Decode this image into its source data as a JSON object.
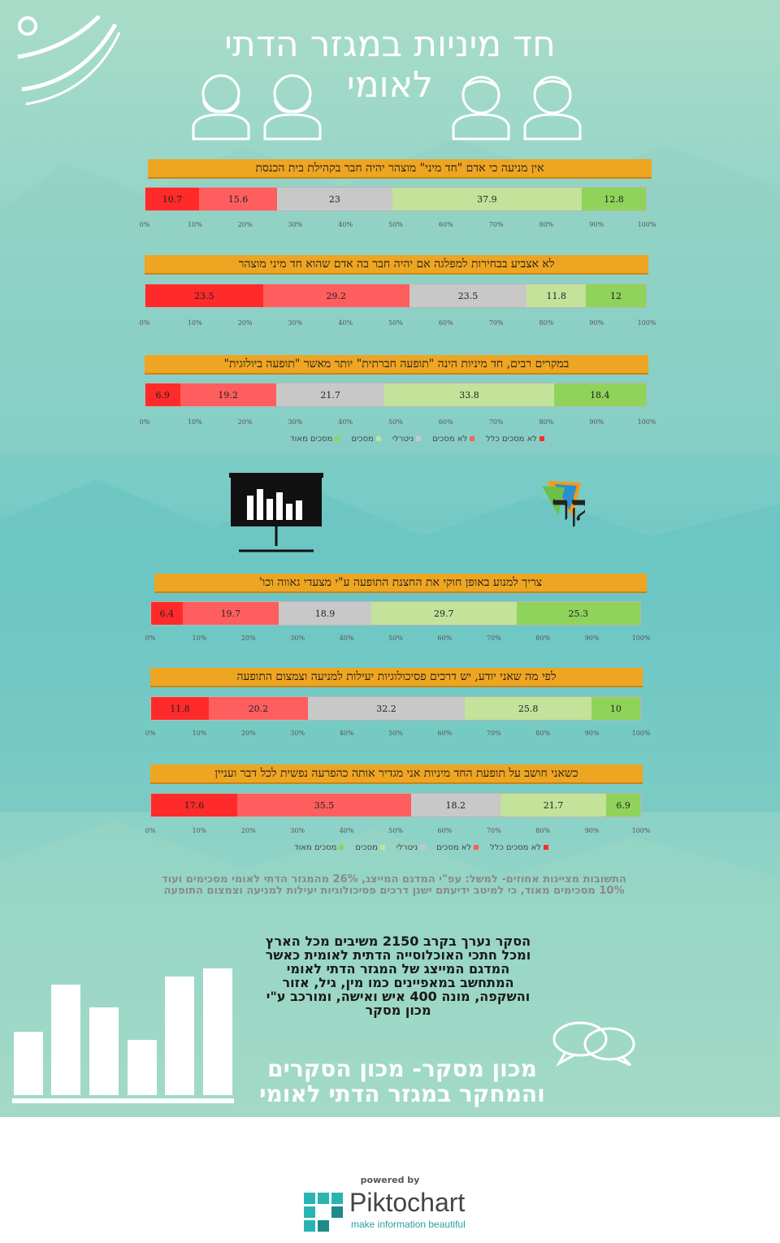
{
  "header": {
    "title_line1": "חד מיניות במגזר הדתי",
    "title_line2": "לאומי"
  },
  "colors": {
    "bg_top": "#a9dcc8",
    "bg_mid": "#72c9c6",
    "header_bar": "#eea522",
    "strongly_disagree": "#ff2b2b",
    "disagree": "#ff5e5e",
    "neutral": "#c8c8c8",
    "agree": "#c3e29a",
    "strongly_agree": "#8fd35a"
  },
  "axis_ticks": [
    "0%",
    "10%",
    "20%",
    "30%",
    "40%",
    "50%",
    "60%",
    "70%",
    "80%",
    "90%",
    "100%"
  ],
  "legend": {
    "strongly_disagree": "לא מסכים כלל",
    "disagree": "לא מסכים",
    "neutral": "ניטרלי",
    "agree": "מסכים",
    "strongly_agree": "מסכים מאוד"
  },
  "logo": {
    "text": "מסקר"
  },
  "chart_data": [
    {
      "type": "bar",
      "stacked": true,
      "orientation": "horizontal",
      "title": "אין מניעה כי אדם \"חד מיני\" מוצהר יהיה חבר בקהילת בית הכנסת",
      "xlim": [
        0,
        100
      ],
      "categories": [
        "לא מסכים כלל",
        "לא מסכים",
        "ניטרלי",
        "מסכים",
        "מסכים מאוד"
      ],
      "values": [
        10.7,
        15.6,
        23,
        37.9,
        12.8
      ]
    },
    {
      "type": "bar",
      "stacked": true,
      "orientation": "horizontal",
      "title": "לא אצביע בבחירות למפלגה אם יהיה חבר בה אדם שהוא חד מיני מוצהר",
      "xlim": [
        0,
        100
      ],
      "categories": [
        "לא מסכים כלל",
        "לא מסכים",
        "ניטרלי",
        "מסכים",
        "מסכים מאוד"
      ],
      "values": [
        23.5,
        29.2,
        23.5,
        11.8,
        12
      ]
    },
    {
      "type": "bar",
      "stacked": true,
      "orientation": "horizontal",
      "title": "במקרים רבים, חד מיניות הינה \"תופעה חברתית\" יותר מאשר \"תופעה ביולוגית\"",
      "xlim": [
        0,
        100
      ],
      "categories": [
        "לא מסכים כלל",
        "לא מסכים",
        "ניטרלי",
        "מסכים",
        "מסכים מאוד"
      ],
      "values": [
        6.9,
        19.2,
        21.7,
        33.8,
        18.4
      ]
    },
    {
      "type": "bar",
      "stacked": true,
      "orientation": "horizontal",
      "title": "צריך למנוע באופן חוקי את החצנת התופעה ע\"י מצעדי גאווה וכו'",
      "xlim": [
        0,
        100
      ],
      "categories": [
        "לא מסכים כלל",
        "לא מסכים",
        "ניטרלי",
        "מסכים",
        "מסכים מאוד"
      ],
      "values": [
        6.4,
        19.7,
        18.9,
        29.7,
        25.3
      ]
    },
    {
      "type": "bar",
      "stacked": true,
      "orientation": "horizontal",
      "title": "לפי מה שאני יודע, יש דרכים פסיכולוגיות יעילות למניעה וצמצום התופעה",
      "xlim": [
        0,
        100
      ],
      "categories": [
        "לא מסכים כלל",
        "לא מסכים",
        "ניטרלי",
        "מסכים",
        "מסכים מאוד"
      ],
      "values": [
        11.8,
        20.2,
        32.2,
        25.8,
        10
      ]
    },
    {
      "type": "bar",
      "stacked": true,
      "orientation": "horizontal",
      "title": "כשאני חושב על תופעת החד מיניות אני מגדיר אותה כהפרעה נפשית לכל דבר ועניין",
      "xlim": [
        0,
        100
      ],
      "categories": [
        "לא מסכים כלל",
        "לא מסכים",
        "ניטרלי",
        "מסכים",
        "מסכים מאוד"
      ],
      "values": [
        17.6,
        35.5,
        18.2,
        21.7,
        6.9
      ]
    }
  ],
  "note": "התשובות מציינות אחוזים- למשל: עפ\"י המדגם המייצג, 26% מהמגזר הדתי לאומי מסכימים ועוד 10% מסכימים מאוד, כי למיטב ידיעתם ישנן דרכים פסיכולוגיות יעילות למניעה וצמצום התופעה",
  "about": "הסקר נערך בקרב 2150 משיבים מכל הארץ ומכל חתכי האוכלוסייה הדתית לאומית כאשר המדגם המייצג של המגזר הדתי לאומי המתחשב במאפיינים כמו מין, גיל, אזור והשקפה, מונה 400 איש ואישה, ומורכב ע\"י מכון מסקר",
  "footer": {
    "line1": "מכון מסקר- מכון הסקרים",
    "line2": "והמחקר במגזר הדתי לאומי"
  },
  "branding": {
    "powered_by": "powered by",
    "name": "Piktochart",
    "tagline": "make information beautiful"
  }
}
